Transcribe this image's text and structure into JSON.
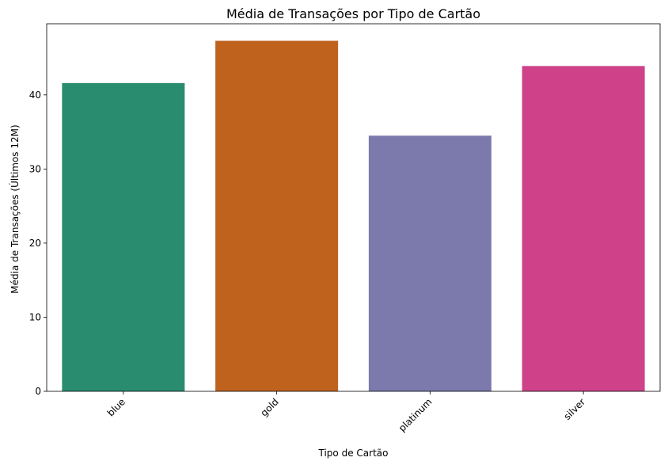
{
  "chart_data": {
    "type": "bar",
    "title": "Média de Transações por Tipo de Cartão",
    "xlabel": "Tipo de Cartão",
    "ylabel": "Média de Transações (Últimos 12M)",
    "categories": [
      "blue",
      "gold",
      "platinum",
      "silver"
    ],
    "values": [
      41.6,
      47.3,
      34.5,
      43.9
    ],
    "colors": [
      "#2a8c6e",
      "#bf621e",
      "#7c79ac",
      "#cf428a"
    ],
    "ylim": [
      0,
      49.6
    ],
    "yticks": [
      0,
      10,
      20,
      30,
      40
    ],
    "grid": false,
    "legend": "none"
  }
}
